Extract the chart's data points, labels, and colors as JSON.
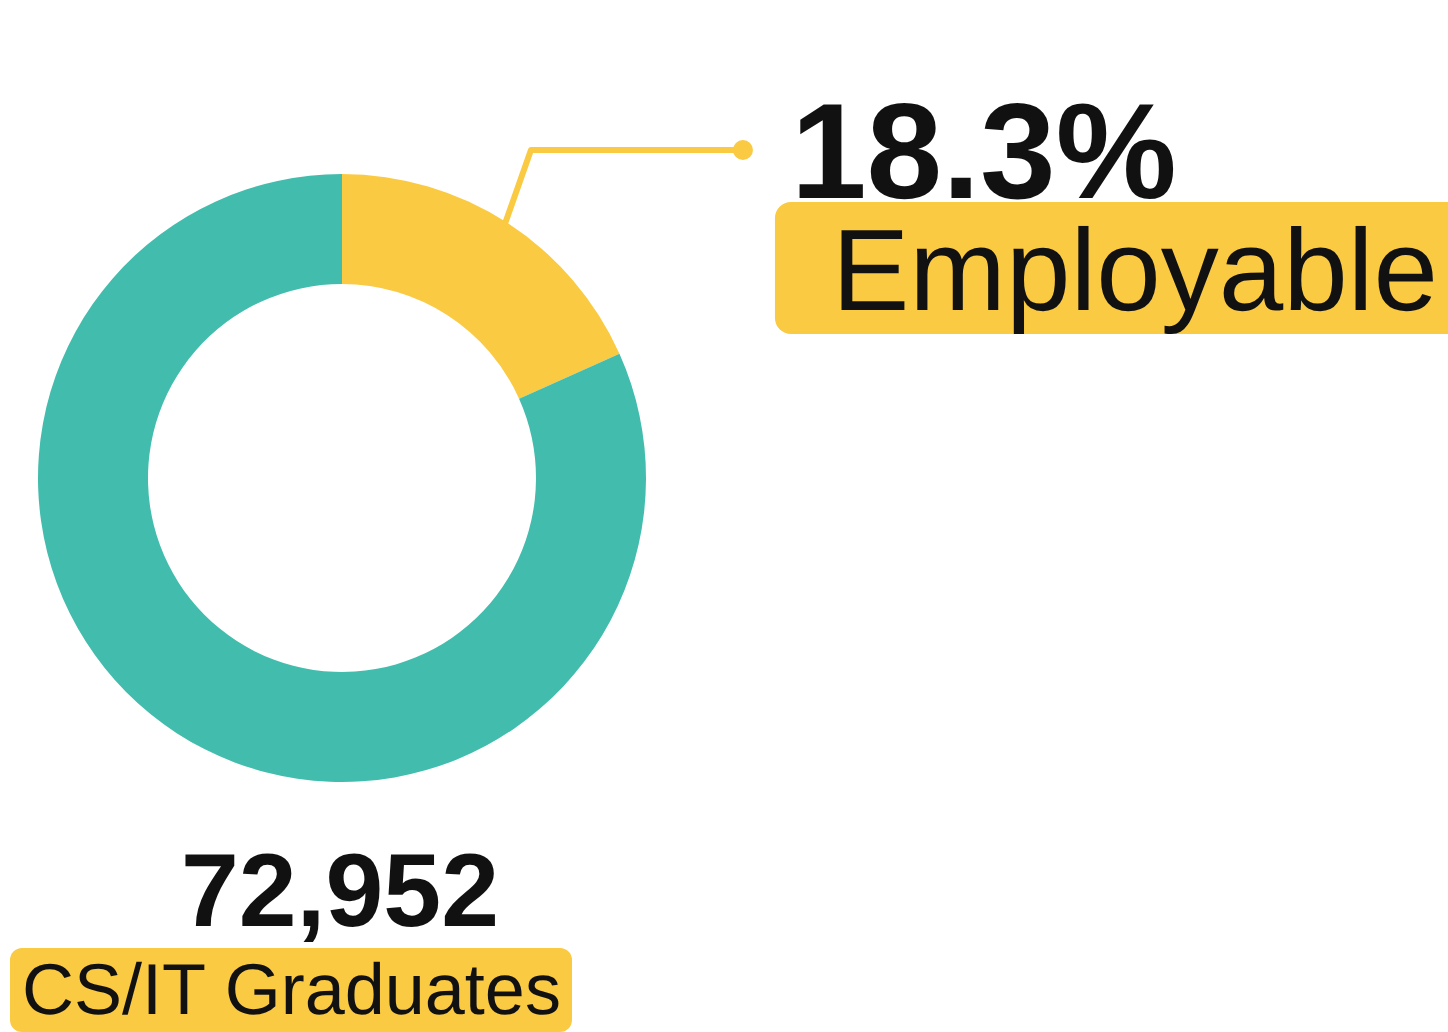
{
  "chart_data": {
    "type": "donut",
    "categories": [
      "Employable",
      null
    ],
    "values": [
      18.3,
      81.7
    ],
    "colors": [
      "#fbca43",
      "#42bdad"
    ],
    "value_labels": [
      "18.3%",
      null
    ],
    "annotations": [
      "72,952",
      "CS/IT Graduates"
    ]
  }
}
